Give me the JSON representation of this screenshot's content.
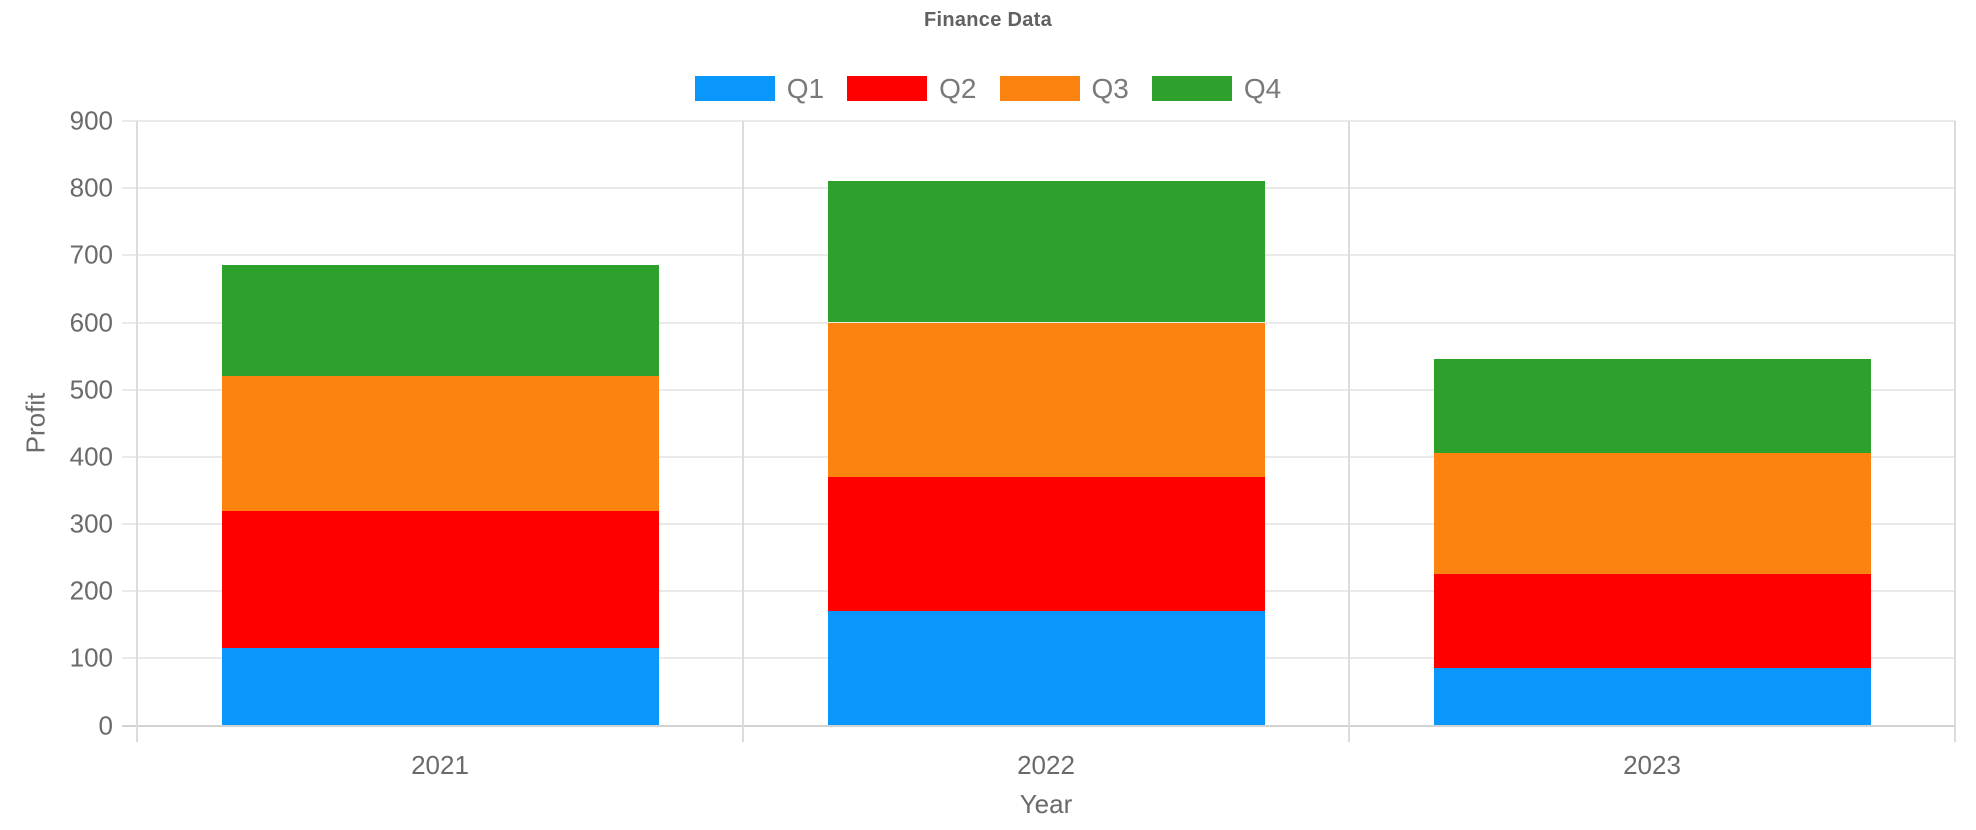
{
  "title": "Finance Data",
  "axes": {
    "y_title": "Profit",
    "x_title": "Year",
    "y_tick_labels": [
      "0",
      "100",
      "200",
      "300",
      "400",
      "500",
      "600",
      "700",
      "800",
      "900"
    ],
    "x_tick_labels": [
      "2021",
      "2022",
      "2023"
    ]
  },
  "chart_data": {
    "type": "bar",
    "stacked": true,
    "title": "Finance Data",
    "xlabel": "Year",
    "ylabel": "Profit",
    "ylim": [
      0,
      900
    ],
    "ytick_step": 100,
    "grid": true,
    "legend_position": "top-center",
    "categories": [
      "2021",
      "2022",
      "2023"
    ],
    "series": [
      {
        "name": "Q1",
        "color": "#0997FB",
        "values": [
          115,
          170,
          85
        ]
      },
      {
        "name": "Q2",
        "color": "#FE0000",
        "values": [
          205,
          200,
          140
        ]
      },
      {
        "name": "Q3",
        "color": "#FC830F",
        "values": [
          200,
          230,
          180
        ]
      },
      {
        "name": "Q4",
        "color": "#2EA02C",
        "values": [
          165,
          210,
          140
        ]
      }
    ]
  },
  "colors": {
    "title_text": "#616161",
    "tick_text": "#6A6A6A",
    "legend_text": "#797979",
    "gridline": "#EAEAEA",
    "axis_line": "#D2D2D2"
  }
}
